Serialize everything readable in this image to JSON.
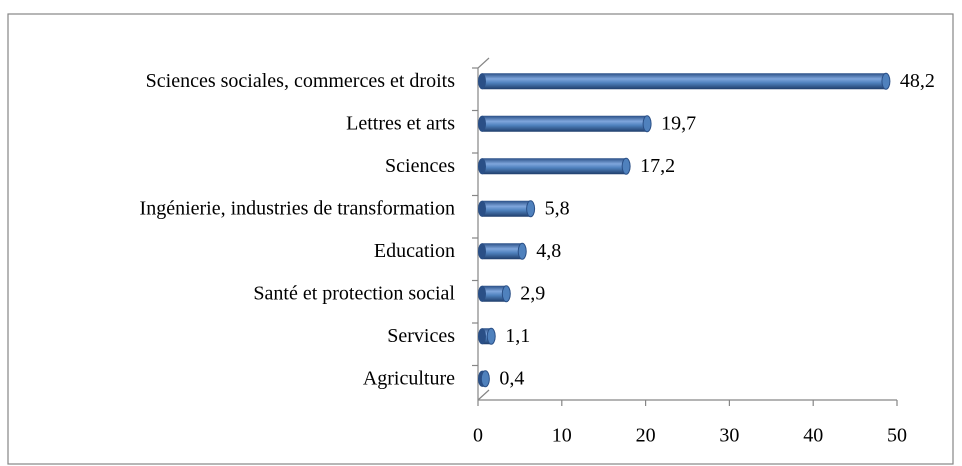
{
  "chart_data": {
    "type": "bar",
    "orientation": "horizontal",
    "categories": [
      "Sciences sociales, commerces et droits",
      "Lettres et arts",
      "Sciences",
      "Ingénierie, industries de transformation",
      "Education",
      "Santé et protection social",
      "Services",
      "Agriculture"
    ],
    "values": [
      48.2,
      19.7,
      17.2,
      5.8,
      4.8,
      2.9,
      1.1,
      0.4
    ],
    "value_labels": [
      "48,2",
      "19,7",
      "17,2",
      "5,8",
      "4,8",
      "2,9",
      "1,1",
      "0,4"
    ],
    "color": "#4f81bd",
    "xlim": [
      0,
      50
    ],
    "xticks": [
      0,
      10,
      20,
      30,
      40,
      50
    ],
    "grid": false
  }
}
